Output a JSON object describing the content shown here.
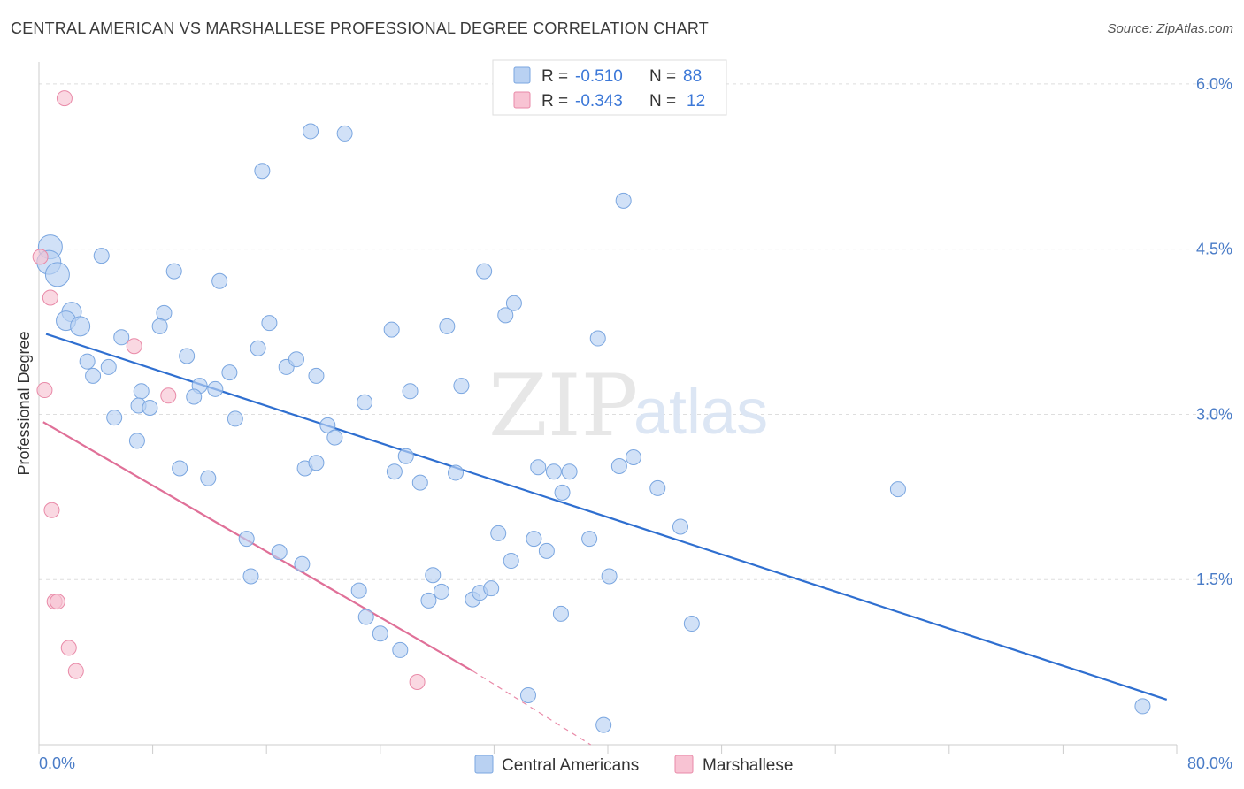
{
  "header": {
    "title": "CENTRAL AMERICAN VS MARSHALLESE PROFESSIONAL DEGREE CORRELATION CHART",
    "source": "Source: ZipAtlas.com"
  },
  "watermark": {
    "part1": "ZIP",
    "part2": "atlas"
  },
  "colors": {
    "blue_fill": "#b9d1f2",
    "blue_stroke": "#7aa6e0",
    "blue_line": "#2f6fd0",
    "pink_fill": "#f8c3d3",
    "pink_stroke": "#e98aa8",
    "pink_line": "#e07098",
    "tick": "#4a7cc7"
  },
  "legend": {
    "rows": [
      {
        "r_label": "R = ",
        "r_value": "-0.510",
        "n_label": "N = ",
        "n_value": "88"
      },
      {
        "r_label": "R = ",
        "r_value": "-0.343",
        "n_label": "N = ",
        "n_value": "12"
      }
    ]
  },
  "chart_data": {
    "type": "scatter",
    "title": "CENTRAL AMERICAN VS MARSHALLESE PROFESSIONAL DEGREE CORRELATION CHART",
    "xlabel": "",
    "ylabel": "Professional Degree",
    "xlim": [
      0,
      80
    ],
    "ylim": [
      0,
      6.2
    ],
    "x_tick_labels": [
      "0.0%",
      "80.0%"
    ],
    "y_ticks": [
      1.5,
      3.0,
      4.5,
      6.0
    ],
    "y_tick_labels": [
      "1.5%",
      "3.0%",
      "4.5%",
      "6.0%"
    ],
    "grid": true,
    "legend_position": "top-center",
    "series": [
      {
        "name": "Central Americans",
        "color": "#b9d1f2",
        "points": [
          [
            0.8,
            4.52
          ],
          [
            0.7,
            4.38
          ],
          [
            1.3,
            4.27
          ],
          [
            2.3,
            3.93
          ],
          [
            1.9,
            3.85
          ],
          [
            2.9,
            3.8
          ],
          [
            4.4,
            4.44
          ],
          [
            9.5,
            4.3
          ],
          [
            12.7,
            4.21
          ],
          [
            8.8,
            3.92
          ],
          [
            8.5,
            3.8
          ],
          [
            5.8,
            3.7
          ],
          [
            3.4,
            3.48
          ],
          [
            4.9,
            3.43
          ],
          [
            3.8,
            3.35
          ],
          [
            10.4,
            3.53
          ],
          [
            12.4,
            3.23
          ],
          [
            7.2,
            3.21
          ],
          [
            11.3,
            3.26
          ],
          [
            10.9,
            3.16
          ],
          [
            13.4,
            3.38
          ],
          [
            7.0,
            3.08
          ],
          [
            7.8,
            3.06
          ],
          [
            5.3,
            2.97
          ],
          [
            6.9,
            2.76
          ],
          [
            13.8,
            2.96
          ],
          [
            15.4,
            3.6
          ],
          [
            16.2,
            3.83
          ],
          [
            17.4,
            3.43
          ],
          [
            18.1,
            3.5
          ],
          [
            19.5,
            3.35
          ],
          [
            15.7,
            5.21
          ],
          [
            19.1,
            5.57
          ],
          [
            21.5,
            5.55
          ],
          [
            20.3,
            2.9
          ],
          [
            20.8,
            2.79
          ],
          [
            22.9,
            3.11
          ],
          [
            24.8,
            3.77
          ],
          [
            26.1,
            3.21
          ],
          [
            28.7,
            3.8
          ],
          [
            29.7,
            3.26
          ],
          [
            31.3,
            4.3
          ],
          [
            32.8,
            3.9
          ],
          [
            33.4,
            4.01
          ],
          [
            39.3,
            3.69
          ],
          [
            41.1,
            4.94
          ],
          [
            9.9,
            2.51
          ],
          [
            11.9,
            2.42
          ],
          [
            18.7,
            2.51
          ],
          [
            19.5,
            2.56
          ],
          [
            25.0,
            2.48
          ],
          [
            25.8,
            2.62
          ],
          [
            26.8,
            2.38
          ],
          [
            29.3,
            2.47
          ],
          [
            35.1,
            2.52
          ],
          [
            36.2,
            2.48
          ],
          [
            37.3,
            2.48
          ],
          [
            36.8,
            2.29
          ],
          [
            40.8,
            2.53
          ],
          [
            41.8,
            2.61
          ],
          [
            43.5,
            2.33
          ],
          [
            45.1,
            1.98
          ],
          [
            60.4,
            2.32
          ],
          [
            14.6,
            1.87
          ],
          [
            16.9,
            1.75
          ],
          [
            18.5,
            1.64
          ],
          [
            14.9,
            1.53
          ],
          [
            22.5,
            1.4
          ],
          [
            23.0,
            1.16
          ],
          [
            24.0,
            1.01
          ],
          [
            25.4,
            0.86
          ],
          [
            27.4,
            1.31
          ],
          [
            27.7,
            1.54
          ],
          [
            28.3,
            1.39
          ],
          [
            30.5,
            1.32
          ],
          [
            31.0,
            1.38
          ],
          [
            31.8,
            1.42
          ],
          [
            32.3,
            1.92
          ],
          [
            33.2,
            1.67
          ],
          [
            34.8,
            1.87
          ],
          [
            35.7,
            1.76
          ],
          [
            36.7,
            1.19
          ],
          [
            38.7,
            1.87
          ],
          [
            40.1,
            1.53
          ],
          [
            45.9,
            1.1
          ],
          [
            34.4,
            0.45
          ],
          [
            39.7,
            0.18
          ],
          [
            77.6,
            0.35
          ]
        ],
        "trend": [
          [
            0.5,
            3.73
          ],
          [
            79.3,
            0.41
          ]
        ]
      },
      {
        "name": "Marshallese",
        "color": "#f8c3d3",
        "points": [
          [
            1.8,
            5.87
          ],
          [
            0.1,
            4.43
          ],
          [
            0.8,
            4.06
          ],
          [
            0.4,
            3.22
          ],
          [
            6.7,
            3.62
          ],
          [
            9.1,
            3.17
          ],
          [
            0.9,
            2.13
          ],
          [
            1.1,
            1.3
          ],
          [
            1.3,
            1.3
          ],
          [
            2.1,
            0.88
          ],
          [
            2.6,
            0.67
          ],
          [
            26.6,
            0.57
          ]
        ],
        "trend": [
          [
            0.3,
            2.93
          ],
          [
            30.5,
            0.67
          ]
        ],
        "trend_extension": [
          [
            30.5,
            0.67
          ],
          [
            38.8,
            0.0
          ]
        ]
      }
    ]
  }
}
